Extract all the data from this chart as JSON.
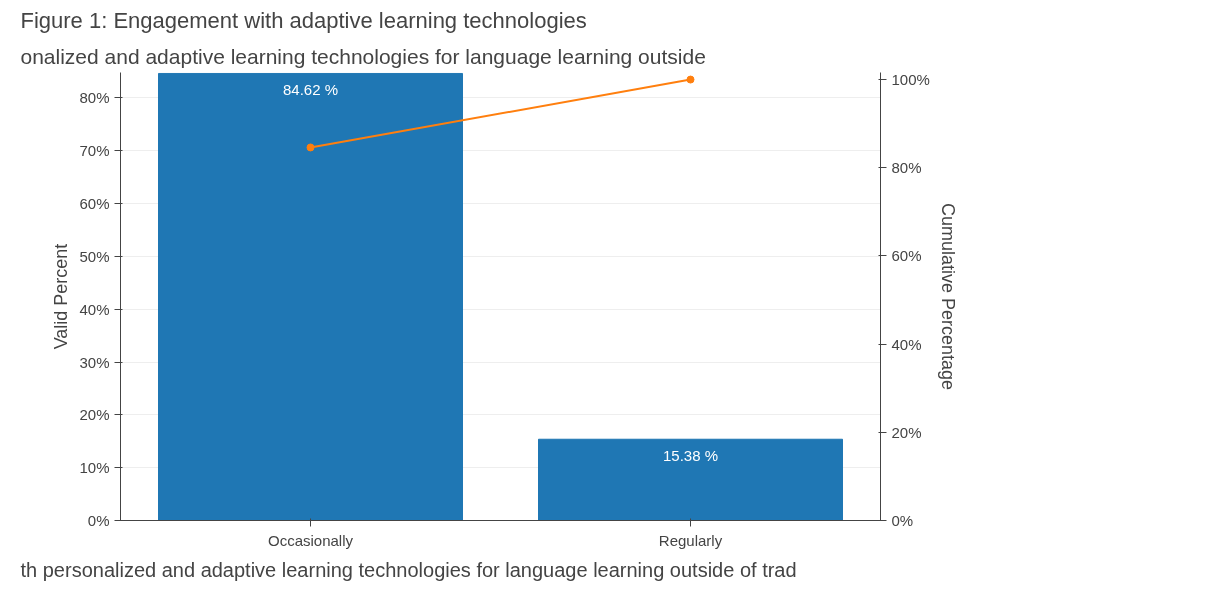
{
  "chart_data": {
    "type": "bar",
    "title": "Figure 1: Engagement with adaptive learning technologies",
    "subtitle": "onalized and adaptive learning technologies for language learning outside",
    "categories": [
      "Occasionally",
      "Regularly"
    ],
    "series": [
      {
        "color": "#1f77b4",
        "values": [
          84.62,
          15.38
        ],
        "value_labels": [
          "84.62 %",
          "15.38 %"
        ]
      },
      {
        "type": "line",
        "axis": "y2",
        "color": "#ff7f0e",
        "values": [
          84.6,
          100
        ]
      }
    ],
    "ylabel": "Valid Percent",
    "y2label": "Cumulative Percentage",
    "ylim": [
      0,
      84.8
    ],
    "y2lim": [
      0,
      101.6
    ],
    "yticks": [
      {
        "value": 0,
        "label": "0%"
      },
      {
        "value": 10,
        "label": "10%"
      },
      {
        "value": 20,
        "label": "20%"
      },
      {
        "value": 30,
        "label": "30%"
      },
      {
        "value": 40,
        "label": "40%"
      },
      {
        "value": 50,
        "label": "50%"
      },
      {
        "value": 60,
        "label": "60%"
      },
      {
        "value": 70,
        "label": "70%"
      },
      {
        "value": 80,
        "label": "80%"
      }
    ],
    "y2ticks": [
      {
        "value": 0,
        "label": "0%"
      },
      {
        "value": 20,
        "label": "20%"
      },
      {
        "value": 40,
        "label": "40%"
      },
      {
        "value": 60,
        "label": "60%"
      },
      {
        "value": 80,
        "label": "80%"
      },
      {
        "value": 100,
        "label": "100%"
      }
    ],
    "marker": "circle",
    "grid": "y",
    "annotations": [
      "th personalized and adaptive learning technologies for language learning outside of trad"
    ]
  }
}
